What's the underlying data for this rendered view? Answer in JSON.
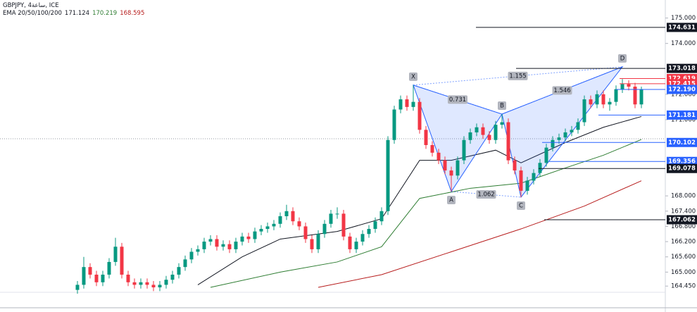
{
  "chart_data": {
    "type": "candlestick",
    "title": "GBPJPY, 4ساعة, ICE",
    "indicator": {
      "name": "EMA 20/50/100/200",
      "values": [
        171.124,
        170.219,
        168.595
      ],
      "colors": [
        "#131722",
        "#2e7d32",
        "#b71c1c"
      ]
    },
    "up_color": "#089981",
    "down_color": "#f23645",
    "ylim": [
      163.43,
      175.71
    ],
    "yticks": [
      {
        "value": 175,
        "label": "175.000"
      },
      {
        "value": 174,
        "label": "174.000"
      },
      {
        "value": 172,
        "label": "172.000"
      },
      {
        "value": 171,
        "label": "171.000"
      },
      {
        "value": 168,
        "label": "168.000"
      },
      {
        "value": 167.4,
        "label": "167.400"
      },
      {
        "value": 166.8,
        "label": "166.800"
      },
      {
        "value": 166.2,
        "label": "166.200"
      },
      {
        "value": 165.6,
        "label": "165.600"
      },
      {
        "value": 165,
        "label": "165.000"
      },
      {
        "value": 164.45,
        "label": "164.450"
      }
    ],
    "candles": [
      [
        164.3,
        164.65,
        164.15,
        164.5
      ],
      [
        164.5,
        165.6,
        164.35,
        165.2
      ],
      [
        165.2,
        165.35,
        164.75,
        164.9
      ],
      [
        164.9,
        165.05,
        164.45,
        164.6
      ],
      [
        164.6,
        165.05,
        164.45,
        164.9
      ],
      [
        164.9,
        165.55,
        164.75,
        165.4
      ],
      [
        165.4,
        166.35,
        165.25,
        166.0
      ],
      [
        166.0,
        166.15,
        164.75,
        164.9
      ],
      [
        164.9,
        165.05,
        164.45,
        164.6
      ],
      [
        164.6,
        164.75,
        164.35,
        164.5
      ],
      [
        164.5,
        164.75,
        164.35,
        164.6
      ],
      [
        164.6,
        164.75,
        164.35,
        164.5
      ],
      [
        164.5,
        164.65,
        164.25,
        164.4
      ],
      [
        164.4,
        164.65,
        164.25,
        164.5
      ],
      [
        164.5,
        164.85,
        164.35,
        164.7
      ],
      [
        164.7,
        165.05,
        164.55,
        164.9
      ],
      [
        164.9,
        165.35,
        164.75,
        165.2
      ],
      [
        165.2,
        165.65,
        165.05,
        165.5
      ],
      [
        165.5,
        165.95,
        165.35,
        165.8
      ],
      [
        165.8,
        166.05,
        165.65,
        165.9
      ],
      [
        165.9,
        166.35,
        165.75,
        166.2
      ],
      [
        166.2,
        166.45,
        166.05,
        166.3
      ],
      [
        166.3,
        166.45,
        165.85,
        166.0
      ],
      [
        166.0,
        166.25,
        165.85,
        166.1
      ],
      [
        166.1,
        166.25,
        165.75,
        165.9
      ],
      [
        165.9,
        166.35,
        165.75,
        166.2
      ],
      [
        166.2,
        166.55,
        166.05,
        166.4
      ],
      [
        166.4,
        166.55,
        166.15,
        166.3
      ],
      [
        166.3,
        166.75,
        166.15,
        166.6
      ],
      [
        166.6,
        166.85,
        166.45,
        166.7
      ],
      [
        166.7,
        166.95,
        166.55,
        166.8
      ],
      [
        166.8,
        167.05,
        166.65,
        166.9
      ],
      [
        166.9,
        167.35,
        166.75,
        167.2
      ],
      [
        167.2,
        167.65,
        167.05,
        167.4
      ],
      [
        167.4,
        167.55,
        166.85,
        167.0
      ],
      [
        167.0,
        167.15,
        166.65,
        166.8
      ],
      [
        166.8,
        166.95,
        166.15,
        166.3
      ],
      [
        166.3,
        166.45,
        165.75,
        165.9
      ],
      [
        165.9,
        166.65,
        165.75,
        166.5
      ],
      [
        166.5,
        167.05,
        166.35,
        166.9
      ],
      [
        166.9,
        167.45,
        166.75,
        167.3
      ],
      [
        167.3,
        167.55,
        167.1,
        167.3
      ],
      [
        167.3,
        167.45,
        166.25,
        166.4
      ],
      [
        166.4,
        166.55,
        165.75,
        165.9
      ],
      [
        165.9,
        166.35,
        165.75,
        166.2
      ],
      [
        166.2,
        166.65,
        166.05,
        166.5
      ],
      [
        166.5,
        166.85,
        166.35,
        166.7
      ],
      [
        166.7,
        167.15,
        166.55,
        167.0
      ],
      [
        167.0,
        167.55,
        166.85,
        167.4
      ],
      [
        167.4,
        170.35,
        167.25,
        170.2
      ],
      [
        170.2,
        171.55,
        170.05,
        171.4
      ],
      [
        171.4,
        171.95,
        171.25,
        171.8
      ],
      [
        171.8,
        171.95,
        171.35,
        171.5
      ],
      [
        171.5,
        172.36,
        171.35,
        171.7
      ],
      [
        171.7,
        171.85,
        170.45,
        170.6
      ],
      [
        170.6,
        170.75,
        169.85,
        170.0
      ],
      [
        170.0,
        170.15,
        169.55,
        169.7
      ],
      [
        169.7,
        169.85,
        169.25,
        169.4
      ],
      [
        169.4,
        169.55,
        168.85,
        169.0
      ],
      [
        169.0,
        169.15,
        168.17,
        168.8
      ],
      [
        168.8,
        169.55,
        168.65,
        169.4
      ],
      [
        169.4,
        170.35,
        169.25,
        170.2
      ],
      [
        170.2,
        170.65,
        170.05,
        170.5
      ],
      [
        170.5,
        170.85,
        170.35,
        170.7
      ],
      [
        170.7,
        170.85,
        170.25,
        170.4
      ],
      [
        170.4,
        170.55,
        170.05,
        170.2
      ],
      [
        170.2,
        170.95,
        170.05,
        170.8
      ],
      [
        170.8,
        171.22,
        170.65,
        170.9
      ],
      [
        170.9,
        171.05,
        169.25,
        169.4
      ],
      [
        169.4,
        169.55,
        168.85,
        169.0
      ],
      [
        169.0,
        169.15,
        167.95,
        168.2
      ],
      [
        168.2,
        168.75,
        168.05,
        168.6
      ],
      [
        168.6,
        169.05,
        168.45,
        168.9
      ],
      [
        168.9,
        169.45,
        168.75,
        169.3
      ],
      [
        169.3,
        170.05,
        169.15,
        169.9
      ],
      [
        169.9,
        170.35,
        169.75,
        170.2
      ],
      [
        170.2,
        170.45,
        170.05,
        170.3
      ],
      [
        170.3,
        170.65,
        170.15,
        170.5
      ],
      [
        170.5,
        170.75,
        170.35,
        170.6
      ],
      [
        170.6,
        171.05,
        170.45,
        170.9
      ],
      [
        170.9,
        171.95,
        170.75,
        171.8
      ],
      [
        171.8,
        171.95,
        171.45,
        171.6
      ],
      [
        171.6,
        172.15,
        171.45,
        172.0
      ],
      [
        172.0,
        172.15,
        171.45,
        171.6
      ],
      [
        171.6,
        171.85,
        171.35,
        171.7
      ],
      [
        171.7,
        172.35,
        171.55,
        172.2
      ],
      [
        172.2,
        172.6,
        172.05,
        172.4
      ],
      [
        172.4,
        172.55,
        172.15,
        172.3
      ],
      [
        172.3,
        172.45,
        171.45,
        171.6
      ],
      [
        171.6,
        172.3,
        171.45,
        172.19
      ]
    ],
    "series": [
      {
        "color": "#131722",
        "x": [
          19,
          26,
          32,
          41,
          48,
          54,
          59,
          66,
          70,
          77,
          83,
          89
        ],
        "values": [
          164.5,
          165.6,
          166.3,
          166.6,
          167.1,
          169.4,
          169.4,
          169.8,
          169.3,
          170.1,
          170.7,
          171.124
        ]
      },
      {
        "color": "#2e7d32",
        "x": [
          21,
          32,
          41,
          48,
          54,
          62,
          70,
          77,
          83,
          89
        ],
        "values": [
          164.4,
          165.0,
          165.4,
          166.0,
          167.9,
          168.3,
          168.5,
          169.1,
          169.6,
          170.219
        ]
      },
      {
        "color": "#b71c1c",
        "x": [
          38,
          48,
          59,
          70,
          80,
          89
        ],
        "values": [
          164.4,
          164.9,
          165.8,
          166.7,
          167.6,
          168.595
        ]
      }
    ],
    "pattern": {
      "color": "#2962ff",
      "points": [
        {
          "label": "X",
          "bar": 53,
          "price": 172.36
        },
        {
          "label": "A",
          "bar": 59,
          "price": 168.17
        },
        {
          "label": "B",
          "bar": 67,
          "price": 171.22
        },
        {
          "label": "C",
          "bar": 70,
          "price": 167.95
        },
        {
          "label": "D",
          "bar": 86,
          "price": 173.08
        }
      ],
      "ratios": [
        0.731,
        1.155,
        1.062,
        1.546
      ]
    },
    "levels": [
      {
        "value": 174.631,
        "color": "#131722"
      },
      {
        "value": 173.018,
        "color": "#131722"
      },
      {
        "value": 172.619,
        "color": "#f23645"
      },
      {
        "value": 172.415,
        "color": "#f23645"
      },
      {
        "value": {
          "value": 172.19,
          "label": "172.190"
        },
        "color": "#2962ff"
      },
      {
        "value": 171.181,
        "color": "#2962ff"
      },
      {
        "value": 170.102,
        "color": "#2962ff"
      },
      {
        "value": 169.356,
        "color": "#2962ff"
      },
      {
        "value": 169.078,
        "color": "#131722"
      },
      {
        "value": 167.062,
        "color": "#131722"
      }
    ]
  }
}
